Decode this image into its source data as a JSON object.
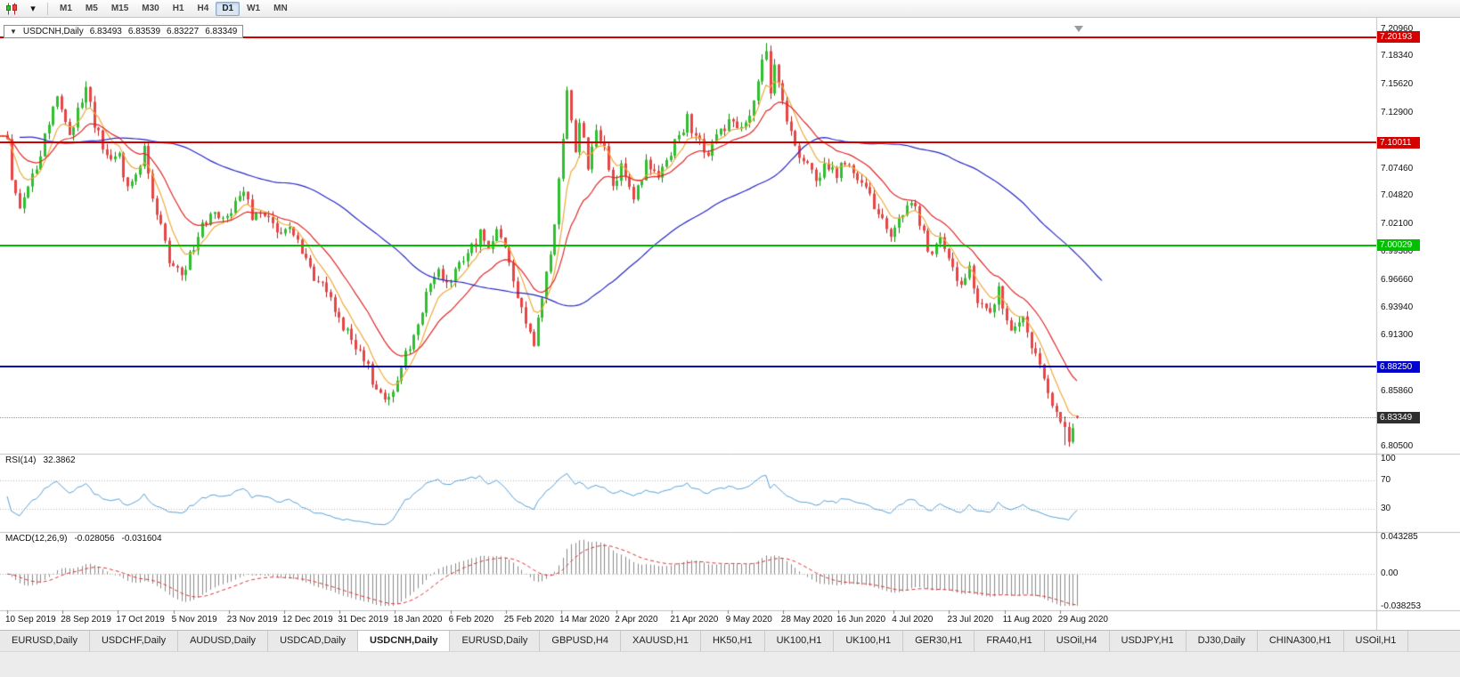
{
  "toolbar": {
    "icons": [
      {
        "name": "candlestick-chart-icon"
      },
      {
        "name": "dropdown-caret-icon",
        "glyph": "▾"
      }
    ],
    "timeframes": [
      {
        "label": "M1",
        "active": false
      },
      {
        "label": "M5",
        "active": false
      },
      {
        "label": "M15",
        "active": false
      },
      {
        "label": "M30",
        "active": false
      },
      {
        "label": "H1",
        "active": false
      },
      {
        "label": "H4",
        "active": false
      },
      {
        "label": "D1",
        "active": true
      },
      {
        "label": "W1",
        "active": false
      },
      {
        "label": "MN",
        "active": false
      }
    ]
  },
  "symbol_header": {
    "dropdown_glyph": "▼",
    "symbol": "USDCNH,Daily",
    "open": "6.83493",
    "high": "6.83539",
    "low": "6.83227",
    "close": "6.83349"
  },
  "price_axis": {
    "labels": [
      {
        "text": "7.20960",
        "price": 7.2096
      },
      {
        "text": "7.18340",
        "price": 7.1834
      },
      {
        "text": "7.15620",
        "price": 7.1562
      },
      {
        "text": "7.12900",
        "price": 7.129
      },
      {
        "text": "7.07460",
        "price": 7.0746
      },
      {
        "text": "7.04820",
        "price": 7.0482
      },
      {
        "text": "7.02100",
        "price": 7.021
      },
      {
        "text": "6.99380",
        "price": 6.9938
      },
      {
        "text": "6.96660",
        "price": 6.9666
      },
      {
        "text": "6.93940",
        "price": 6.9394
      },
      {
        "text": "6.91300",
        "price": 6.913
      },
      {
        "text": "6.85860",
        "price": 6.8586
      },
      {
        "text": "6.80500",
        "price": 6.805
      }
    ]
  },
  "hlines": [
    {
      "price": 7.20193,
      "badge": "7.20193",
      "color": "#d40000",
      "thickness": 2
    },
    {
      "price": 7.10011,
      "badge": "7.10011",
      "color": "#d40000",
      "thickness": 2
    },
    {
      "price": 7.00029,
      "badge": "7.00029",
      "color": "#00c000",
      "thickness": 2
    },
    {
      "price": 6.8825,
      "badge": "6.88250",
      "color": "#0000d0",
      "thickness": 2
    }
  ],
  "current_price": {
    "text": "6.83349",
    "value": 6.83349,
    "badge_color": "#2e2e2e"
  },
  "rsi_panel": {
    "label": "RSI(14)",
    "value": "32.3862",
    "line_color": "#55a0d8",
    "levels": [
      {
        "text": "100",
        "value": 100
      },
      {
        "text": "70",
        "value": 70
      },
      {
        "text": "30",
        "value": 30
      }
    ],
    "dotted_levels": [
      70,
      30
    ]
  },
  "macd_panel": {
    "label": "MACD(12,26,9)",
    "main_value": "-0.028056",
    "signal_value": "-0.031604",
    "histogram_color": "#8a8a8a",
    "signal_color": "#e03030",
    "axis": [
      {
        "text": "0.043285",
        "value": 0.043285
      },
      {
        "text": "0.00",
        "value": 0
      },
      {
        "text": "-0.038253",
        "value": -0.038253
      }
    ]
  },
  "date_axis": {
    "labels": [
      "10 Sep 2019",
      "28 Sep 2019",
      "17 Oct 2019",
      "5 Nov 2019",
      "23 Nov 2019",
      "12 Dec 2019",
      "31 Dec 2019",
      "18 Jan 2020",
      "6 Feb 2020",
      "25 Feb 2020",
      "14 Mar 2020",
      "2 Apr 2020",
      "21 Apr 2020",
      "9 May 2020",
      "28 May 2020",
      "16 Jun 2020",
      "4 Jul 2020",
      "23 Jul 2020",
      "11 Aug 2020",
      "29 Aug 2020"
    ]
  },
  "tabs": [
    {
      "label": "EURUSD,Daily",
      "active": false
    },
    {
      "label": "USDCHF,Daily",
      "active": false
    },
    {
      "label": "AUDUSD,Daily",
      "active": false
    },
    {
      "label": "USDCAD,Daily",
      "active": false
    },
    {
      "label": "USDCNH,Daily",
      "active": true
    },
    {
      "label": "EURUSD,Daily",
      "active": false
    },
    {
      "label": "GBPUSD,H4",
      "active": false
    },
    {
      "label": "XAUUSD,H1",
      "active": false
    },
    {
      "label": "HK50,H1",
      "active": false
    },
    {
      "label": "UK100,H1",
      "active": false
    },
    {
      "label": "UK100,H1",
      "active": false
    },
    {
      "label": "GER30,H1",
      "active": false
    },
    {
      "label": "FRA40,H1",
      "active": false
    },
    {
      "label": "USOil,H4",
      "active": false
    },
    {
      "label": "USDJPY,H1",
      "active": false
    },
    {
      "label": "DJ30,Daily",
      "active": false
    },
    {
      "label": "CHINA300,H1",
      "active": false
    },
    {
      "label": "USOil,H1",
      "active": false
    }
  ],
  "chart_data": {
    "type": "candlestick",
    "symbol": "USDCNH",
    "timeframe": "Daily",
    "price_axis_top": 7.214,
    "price_axis_bottom": 6.8,
    "candle_count": 259,
    "noise": 0.009,
    "up_fill": "#2fbf2f",
    "up_edge": "#0c8a0c",
    "down_fill": "#e84444",
    "down_edge": "#b22222",
    "last_candle": {
      "open": 6.83493,
      "high": 6.83539,
      "low": 6.83227,
      "close": 6.83349
    },
    "forced_highs": [
      [
        183,
        7.1964
      ]
    ],
    "forced_lows": [
      [
        255,
        6.8065
      ],
      [
        256,
        6.8051
      ]
    ],
    "close_keyframes": [
      [
        0,
        7.105
      ],
      [
        1,
        7.062
      ],
      [
        3,
        7.038
      ],
      [
        7,
        7.075
      ],
      [
        10,
        7.12
      ],
      [
        12,
        7.148
      ],
      [
        15,
        7.108
      ],
      [
        19,
        7.15
      ],
      [
        21,
        7.118
      ],
      [
        24,
        7.083
      ],
      [
        27,
        7.09
      ],
      [
        29,
        7.052
      ],
      [
        33,
        7.088
      ],
      [
        36,
        7.03
      ],
      [
        39,
        6.99
      ],
      [
        42,
        6.968
      ],
      [
        44,
        6.992
      ],
      [
        47,
        7.02
      ],
      [
        50,
        7.035
      ],
      [
        52,
        7.022
      ],
      [
        55,
        7.042
      ],
      [
        57,
        7.058
      ],
      [
        59,
        7.03
      ],
      [
        63,
        7.028
      ],
      [
        65,
        7.008
      ],
      [
        68,
        7.016
      ],
      [
        71,
        6.995
      ],
      [
        74,
        6.973
      ],
      [
        77,
        6.96
      ],
      [
        79,
        6.934
      ],
      [
        82,
        6.916
      ],
      [
        85,
        6.895
      ],
      [
        88,
        6.868
      ],
      [
        91,
        6.85
      ],
      [
        93,
        6.858
      ],
      [
        95,
        6.884
      ],
      [
        97,
        6.9
      ],
      [
        100,
        6.937
      ],
      [
        102,
        6.962
      ],
      [
        104,
        6.977
      ],
      [
        106,
        6.96
      ],
      [
        108,
        6.976
      ],
      [
        111,
        6.996
      ],
      [
        114,
        7.012
      ],
      [
        116,
        6.994
      ],
      [
        118,
        7.018
      ],
      [
        120,
        6.997
      ],
      [
        123,
        6.953
      ],
      [
        125,
        6.928
      ],
      [
        127,
        6.906
      ],
      [
        129,
        6.948
      ],
      [
        132,
        7.022
      ],
      [
        134,
        7.102
      ],
      [
        135,
        7.146
      ],
      [
        137,
        7.088
      ],
      [
        138,
        7.124
      ],
      [
        140,
        7.078
      ],
      [
        142,
        7.112
      ],
      [
        144,
        7.094
      ],
      [
        146,
        7.058
      ],
      [
        148,
        7.076
      ],
      [
        151,
        7.048
      ],
      [
        154,
        7.078
      ],
      [
        157,
        7.064
      ],
      [
        159,
        7.086
      ],
      [
        162,
        7.102
      ],
      [
        164,
        7.13
      ],
      [
        166,
        7.104
      ],
      [
        169,
        7.088
      ],
      [
        172,
        7.106
      ],
      [
        174,
        7.12
      ],
      [
        177,
        7.108
      ],
      [
        180,
        7.142
      ],
      [
        182,
        7.178
      ],
      [
        183,
        7.192
      ],
      [
        184,
        7.152
      ],
      [
        185,
        7.17
      ],
      [
        187,
        7.138
      ],
      [
        189,
        7.114
      ],
      [
        191,
        7.088
      ],
      [
        193,
        7.078
      ],
      [
        195,
        7.062
      ],
      [
        198,
        7.076
      ],
      [
        200,
        7.068
      ],
      [
        202,
        7.082
      ],
      [
        205,
        7.062
      ],
      [
        208,
        7.052
      ],
      [
        211,
        7.018
      ],
      [
        213,
        7.002
      ],
      [
        215,
        7.025
      ],
      [
        218,
        7.046
      ],
      [
        220,
        7.018
      ],
      [
        223,
        6.994
      ],
      [
        225,
        7.006
      ],
      [
        227,
        6.988
      ],
      [
        230,
        6.962
      ],
      [
        232,
        6.976
      ],
      [
        234,
        6.948
      ],
      [
        237,
        6.934
      ],
      [
        239,
        6.956
      ],
      [
        240,
        6.944
      ],
      [
        242,
        6.922
      ],
      [
        245,
        6.93
      ],
      [
        247,
        6.902
      ],
      [
        249,
        6.884
      ],
      [
        251,
        6.862
      ],
      [
        253,
        6.842
      ],
      [
        255,
        6.822
      ],
      [
        256,
        6.808
      ],
      [
        257,
        6.824
      ],
      [
        258,
        6.8335
      ]
    ],
    "moving_averages": [
      {
        "type": "ema",
        "period": 7,
        "color": "#edaa3c",
        "shift": 0
      },
      {
        "type": "ema",
        "period": 18,
        "color": "#e02828",
        "shift": 0
      },
      {
        "type": "sma",
        "period": 58,
        "color": "#2626c9",
        "shift": 6
      }
    ],
    "rsi_period": 14,
    "macd_params": [
      12,
      26,
      9
    ]
  }
}
